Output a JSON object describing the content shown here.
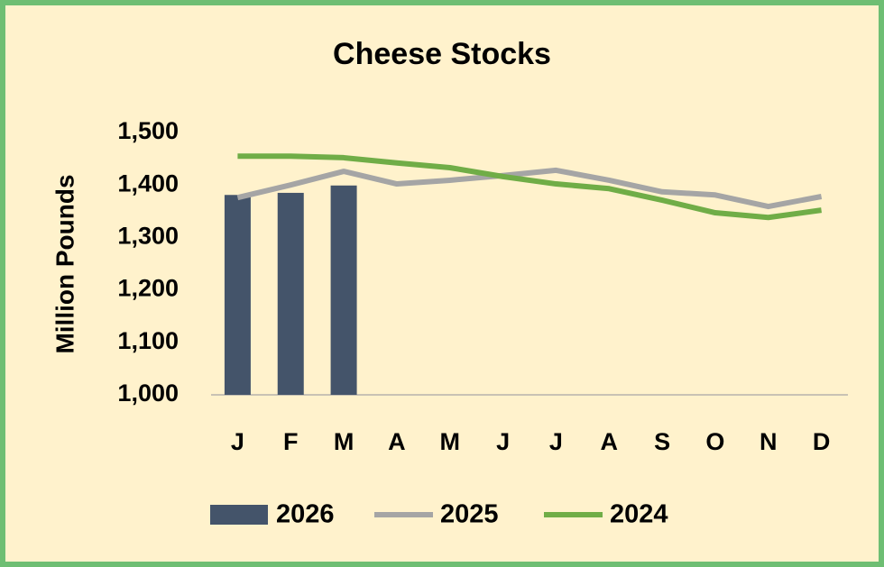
{
  "chart_data": {
    "type": "bar",
    "title": "Cheese Stocks",
    "y_label": "Million Pounds",
    "categories": [
      "J",
      "F",
      "M",
      "A",
      "M",
      "J",
      "J",
      "A",
      "S",
      "O",
      "N",
      "D"
    ],
    "series": [
      {
        "name": "2026",
        "type": "bar",
        "color": "#44546a",
        "values": [
          1381,
          1385,
          1399,
          null,
          null,
          null,
          null,
          null,
          null,
          null,
          null,
          null
        ]
      },
      {
        "name": "2025",
        "type": "line",
        "color": "#a5a5a5",
        "values": [
          1376,
          1400,
          1426,
          1402,
          1409,
          1418,
          1428,
          1409,
          1387,
          1381,
          1359,
          1378
        ]
      },
      {
        "name": "2024",
        "type": "line",
        "color": "#70ad47",
        "values": [
          1455,
          1455,
          1452,
          1442,
          1433,
          1416,
          1402,
          1393,
          1371,
          1347,
          1338,
          1352
        ]
      }
    ],
    "ylim": [
      1000,
      1500
    ],
    "yticks": [
      {
        "value": 1000,
        "label": "1,000"
      },
      {
        "value": 1100,
        "label": "1,100"
      },
      {
        "value": 1200,
        "label": "1,200"
      },
      {
        "value": 1300,
        "label": "1,300"
      },
      {
        "value": 1400,
        "label": "1,400"
      },
      {
        "value": 1500,
        "label": "1,500"
      }
    ],
    "legend": "bottom"
  }
}
